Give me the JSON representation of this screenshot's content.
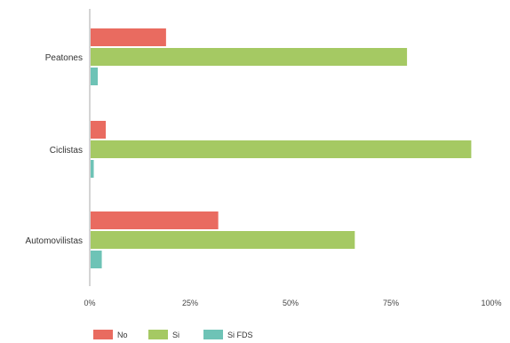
{
  "chart_data": {
    "type": "bar",
    "orientation": "horizontal",
    "categories": [
      "Peatones",
      "Ciclistas",
      "Automovilistas"
    ],
    "series": [
      {
        "name": "No",
        "color": "#e96b60",
        "values": [
          19,
          4,
          32
        ]
      },
      {
        "name": "Si",
        "color": "#a5c963",
        "values": [
          79,
          95,
          66
        ]
      },
      {
        "name": "Si FDS",
        "color": "#6ec3b6",
        "values": [
          2,
          1,
          3
        ]
      }
    ],
    "x_ticks": [
      "0%",
      "25%",
      "50%",
      "75%",
      "100%"
    ],
    "xlim": [
      0,
      100
    ],
    "grid": false,
    "legend_position": "bottom-left"
  }
}
